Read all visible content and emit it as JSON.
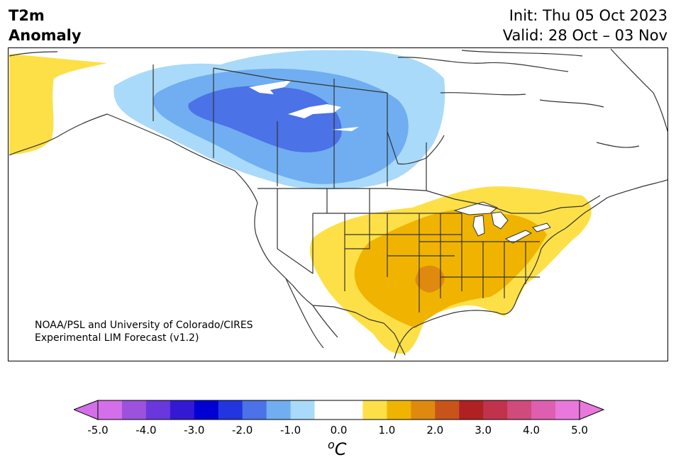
{
  "title": {
    "line1": "T2m",
    "line2": "Anomaly",
    "init": "Init: Thu 05 Oct 2023",
    "valid": "Valid: 28 Oct – 03 Nov"
  },
  "credit": {
    "line1": "NOAA/PSL and University of Colorado/CIRES",
    "line2": "Experimental LIM Forecast (v1.2)"
  },
  "colorbar": {
    "ticks": [
      "-5.0",
      "-4.0",
      "-3.0",
      "-2.0",
      "-1.0",
      "0.0",
      "1.0",
      "2.0",
      "3.0",
      "4.0",
      "5.0"
    ],
    "unit_sup": "o",
    "unit": "C",
    "colors": [
      "#d36fe9",
      "#9c52dc",
      "#6a37dd",
      "#3419d4",
      "#0000d4",
      "#2236e0",
      "#4b72e6",
      "#70aef1",
      "#a9daf9",
      "#ffffff",
      "#ffffff",
      "#fde047",
      "#f0b400",
      "#df8a0f",
      "#c8541a",
      "#b02221",
      "#c2324c",
      "#d14a7c",
      "#de5fb0",
      "#e978dd"
    ],
    "extend_min_color": "#d36fe9",
    "extend_max_color": "#e978dd"
  },
  "map": {
    "region": "North America",
    "colors": {
      "light_blue": "#a9daf9",
      "mid_blue": "#70aef1",
      "blue": "#4b72e6",
      "yellow": "#fde047",
      "gold": "#f0b400",
      "orange": "#df8a0f",
      "land": "#ffffff",
      "lines": "#333333"
    }
  }
}
